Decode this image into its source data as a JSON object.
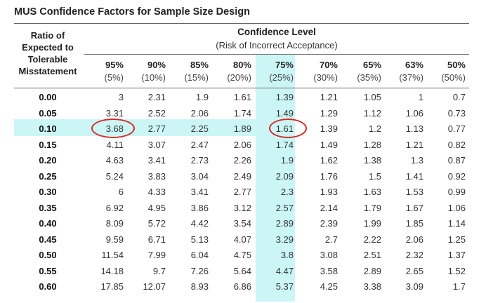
{
  "title": "MUS Confidence Factors for Sample Size Design",
  "row_header": [
    "Ratio of",
    "Expected to",
    "Tolerable",
    "Misstatement"
  ],
  "confidence_title": "Confidence Level",
  "confidence_subtitle": "(Risk of Incorrect Acceptance)",
  "columns": [
    {
      "pct": "95%",
      "risk": "(5%)"
    },
    {
      "pct": "90%",
      "risk": "(10%)"
    },
    {
      "pct": "85%",
      "risk": "(15%)"
    },
    {
      "pct": "80%",
      "risk": "(20%)"
    },
    {
      "pct": "75%",
      "risk": "(25%)"
    },
    {
      "pct": "70%",
      "risk": "(30%)"
    },
    {
      "pct": "65%",
      "risk": "(35%)"
    },
    {
      "pct": "63%",
      "risk": "(37%)"
    },
    {
      "pct": "50%",
      "risk": "(50%)"
    }
  ],
  "rows": [
    {
      "ratio": "0.00",
      "values": [
        "3",
        "2.31",
        "1.9",
        "1.61",
        "1.39",
        "1.21",
        "1.05",
        "1",
        "0.7"
      ]
    },
    {
      "ratio": "0.05",
      "values": [
        "3.31",
        "2.52",
        "2.06",
        "1.74",
        "1.49",
        "1.29",
        "1.12",
        "1.06",
        "0.73"
      ]
    },
    {
      "ratio": "0.10",
      "values": [
        "3.68",
        "2.77",
        "2.25",
        "1.89",
        "1.61",
        "1.39",
        "1.2",
        "1.13",
        "0.77"
      ]
    },
    {
      "ratio": "0.15",
      "values": [
        "4.11",
        "3.07",
        "2.47",
        "2.06",
        "1.74",
        "1.49",
        "1.28",
        "1.21",
        "0.82"
      ]
    },
    {
      "ratio": "0.20",
      "values": [
        "4.63",
        "3.41",
        "2.73",
        "2.26",
        "1.9",
        "1.62",
        "1.38",
        "1.3",
        "0.87"
      ]
    },
    {
      "ratio": "0.25",
      "values": [
        "5.24",
        "3.83",
        "3.04",
        "2.49",
        "2.09",
        "1.76",
        "1.5",
        "1.41",
        "0.92"
      ]
    },
    {
      "ratio": "0.30",
      "values": [
        "6",
        "4.33",
        "3.41",
        "2.77",
        "2.3",
        "1.93",
        "1.63",
        "1.53",
        "0.99"
      ]
    },
    {
      "ratio": "0.35",
      "values": [
        "6.92",
        "4.95",
        "3.86",
        "3.12",
        "2.57",
        "2.14",
        "1.79",
        "1.67",
        "1.06"
      ]
    },
    {
      "ratio": "0.40",
      "values": [
        "8.09",
        "5.72",
        "4.42",
        "3.54",
        "2.89",
        "2.39",
        "1.99",
        "1.85",
        "1.14"
      ]
    },
    {
      "ratio": "0.45",
      "values": [
        "9.59",
        "6.71",
        "5.13",
        "4.07",
        "3.29",
        "2.7",
        "2.22",
        "2.06",
        "1.25"
      ]
    },
    {
      "ratio": "0.50",
      "values": [
        "11.54",
        "7.99",
        "6.04",
        "4.75",
        "3.8",
        "3.08",
        "2.51",
        "2.32",
        "1.37"
      ]
    },
    {
      "ratio": "0.55",
      "values": [
        "14.18",
        "9.7",
        "7.26",
        "5.64",
        "4.47",
        "3.58",
        "2.89",
        "2.65",
        "1.52"
      ]
    },
    {
      "ratio": "0.60",
      "values": [
        "17.85",
        "12.07",
        "8.93",
        "6.86",
        "5.37",
        "4.25",
        "3.38",
        "3.09",
        "1.7"
      ]
    }
  ],
  "highlights": {
    "column": "75%",
    "row": "0.10",
    "circled_values": [
      "3.68",
      "1.61"
    ],
    "highlight_color": "#ccf6f6",
    "circle_color": "#d42a2a"
  }
}
